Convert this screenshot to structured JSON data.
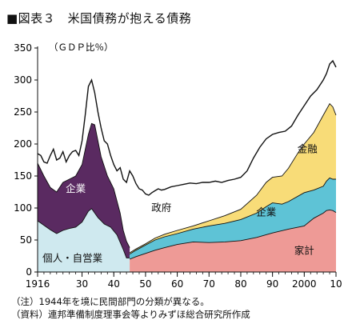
{
  "title": "■図表３　米国債務が抱える債務",
  "notes": [
    "（注）1944年を境に民間部門の分類が異なる。",
    "（資料）連邦準備制度理事会等よりみずほ総合研究所作成"
  ],
  "colors": {
    "household_pre": "#cfe9ef",
    "corporate_pre": "#5a2a61",
    "household": "#ee9a96",
    "corporate": "#5ec3d6",
    "finance": "#f8dc78",
    "government_line": "#111111"
  },
  "chart_data": {
    "type": "area",
    "title": "■図表３　米国債務が抱える債務",
    "ylabel": "（ＧＤＰ比％）",
    "xlabel": "",
    "xlim": [
      1916,
      2010
    ],
    "ylim": [
      0,
      350
    ],
    "yticks": [
      0,
      50,
      100,
      150,
      200,
      250,
      300,
      350
    ],
    "xticks": [
      {
        "value": 1916,
        "label": "1916"
      },
      {
        "value": 1930,
        "label": "30"
      },
      {
        "value": 1940,
        "label": "40"
      },
      {
        "value": 1950,
        "label": "50"
      },
      {
        "value": 1960,
        "label": "60"
      },
      {
        "value": 1970,
        "label": "70"
      },
      {
        "value": 1980,
        "label": "80"
      },
      {
        "value": 1990,
        "label": "90"
      },
      {
        "value": 2000,
        "label": "2000"
      },
      {
        "value": 2010,
        "label": "10"
      }
    ],
    "grid": false,
    "legend": "none",
    "series": [
      {
        "name": "個人・自営業",
        "key": "household_pre",
        "stacked_top": [
          [
            1916,
            80
          ],
          [
            1918,
            73
          ],
          [
            1920,
            66
          ],
          [
            1922,
            60
          ],
          [
            1924,
            65
          ],
          [
            1926,
            68
          ],
          [
            1928,
            70
          ],
          [
            1930,
            78
          ],
          [
            1932,
            95
          ],
          [
            1933,
            99
          ],
          [
            1935,
            85
          ],
          [
            1937,
            75
          ],
          [
            1939,
            70
          ],
          [
            1941,
            58
          ],
          [
            1943,
            35
          ],
          [
            1944,
            22
          ],
          [
            1945,
            22
          ]
        ]
      },
      {
        "name": "企業",
        "key": "corporate_pre",
        "stacked_top": [
          [
            1916,
            170
          ],
          [
            1918,
            150
          ],
          [
            1920,
            132
          ],
          [
            1922,
            125
          ],
          [
            1924,
            140
          ],
          [
            1926,
            145
          ],
          [
            1928,
            150
          ],
          [
            1930,
            168
          ],
          [
            1932,
            215
          ],
          [
            1933,
            232
          ],
          [
            1934,
            230
          ],
          [
            1936,
            180
          ],
          [
            1938,
            150
          ],
          [
            1940,
            130
          ],
          [
            1942,
            92
          ],
          [
            1943,
            65
          ],
          [
            1944,
            48
          ],
          [
            1945,
            38
          ]
        ]
      },
      {
        "name": "家計",
        "key": "household",
        "stacked_top": [
          [
            1945,
            20
          ],
          [
            1947,
            24
          ],
          [
            1950,
            29
          ],
          [
            1953,
            34
          ],
          [
            1956,
            38
          ],
          [
            1960,
            43
          ],
          [
            1965,
            47
          ],
          [
            1970,
            46
          ],
          [
            1975,
            47
          ],
          [
            1980,
            49
          ],
          [
            1985,
            54
          ],
          [
            1990,
            61
          ],
          [
            1995,
            67
          ],
          [
            2000,
            72
          ],
          [
            2003,
            84
          ],
          [
            2006,
            92
          ],
          [
            2007,
            96
          ],
          [
            2008,
            97
          ],
          [
            2009,
            96
          ],
          [
            2010,
            93
          ]
        ]
      },
      {
        "name": "企業",
        "key": "corporate",
        "stacked_top": [
          [
            1945,
            28
          ],
          [
            1947,
            34
          ],
          [
            1950,
            42
          ],
          [
            1953,
            50
          ],
          [
            1956,
            55
          ],
          [
            1960,
            60
          ],
          [
            1965,
            67
          ],
          [
            1970,
            72
          ],
          [
            1975,
            76
          ],
          [
            1980,
            82
          ],
          [
            1985,
            92
          ],
          [
            1988,
            102
          ],
          [
            1990,
            108
          ],
          [
            1993,
            106
          ],
          [
            1995,
            110
          ],
          [
            2000,
            124
          ],
          [
            2003,
            128
          ],
          [
            2006,
            134
          ],
          [
            2007,
            142
          ],
          [
            2008,
            147
          ],
          [
            2009,
            145
          ],
          [
            2010,
            145
          ]
        ]
      },
      {
        "name": "金融",
        "key": "finance",
        "stacked_top": [
          [
            1945,
            30
          ],
          [
            1947,
            36
          ],
          [
            1950,
            44
          ],
          [
            1953,
            53
          ],
          [
            1956,
            59
          ],
          [
            1960,
            65
          ],
          [
            1965,
            72
          ],
          [
            1970,
            80
          ],
          [
            1975,
            88
          ],
          [
            1980,
            98
          ],
          [
            1985,
            120
          ],
          [
            1988,
            140
          ],
          [
            1990,
            148
          ],
          [
            1993,
            150
          ],
          [
            1995,
            162
          ],
          [
            1998,
            186
          ],
          [
            2000,
            200
          ],
          [
            2003,
            218
          ],
          [
            2006,
            245
          ],
          [
            2008,
            263
          ],
          [
            2009,
            258
          ],
          [
            2010,
            245
          ]
        ]
      },
      {
        "name": "政府",
        "key": "government_line",
        "stacked_top": [
          [
            1916,
            185
          ],
          [
            1917,
            182
          ],
          [
            1918,
            172
          ],
          [
            1919,
            170
          ],
          [
            1920,
            182
          ],
          [
            1921,
            192
          ],
          [
            1922,
            175
          ],
          [
            1923,
            178
          ],
          [
            1924,
            188
          ],
          [
            1925,
            172
          ],
          [
            1926,
            182
          ],
          [
            1927,
            188
          ],
          [
            1928,
            190
          ],
          [
            1929,
            182
          ],
          [
            1930,
            205
          ],
          [
            1931,
            245
          ],
          [
            1932,
            290
          ],
          [
            1933,
            300
          ],
          [
            1934,
            280
          ],
          [
            1935,
            250
          ],
          [
            1936,
            225
          ],
          [
            1937,
            205
          ],
          [
            1938,
            200
          ],
          [
            1939,
            182
          ],
          [
            1940,
            168
          ],
          [
            1941,
            158
          ],
          [
            1942,
            163
          ],
          [
            1943,
            145
          ],
          [
            1944,
            140
          ],
          [
            1945,
            158
          ],
          [
            1946,
            150
          ],
          [
            1947,
            138
          ],
          [
            1948,
            130
          ],
          [
            1949,
            128
          ],
          [
            1950,
            122
          ],
          [
            1951,
            120
          ],
          [
            1952,
            124
          ],
          [
            1953,
            127
          ],
          [
            1954,
            130
          ],
          [
            1955,
            128
          ],
          [
            1956,
            129
          ],
          [
            1958,
            133
          ],
          [
            1960,
            135
          ],
          [
            1962,
            137
          ],
          [
            1964,
            139
          ],
          [
            1966,
            138
          ],
          [
            1968,
            140
          ],
          [
            1970,
            140
          ],
          [
            1972,
            142
          ],
          [
            1974,
            140
          ],
          [
            1976,
            143
          ],
          [
            1978,
            145
          ],
          [
            1980,
            148
          ],
          [
            1982,
            158
          ],
          [
            1984,
            178
          ],
          [
            1986,
            195
          ],
          [
            1988,
            208
          ],
          [
            1990,
            215
          ],
          [
            1992,
            218
          ],
          [
            1994,
            220
          ],
          [
            1996,
            228
          ],
          [
            1998,
            245
          ],
          [
            2000,
            260
          ],
          [
            2002,
            275
          ],
          [
            2004,
            285
          ],
          [
            2006,
            300
          ],
          [
            2007,
            310
          ],
          [
            2008,
            325
          ],
          [
            2009,
            330
          ],
          [
            2010,
            320
          ]
        ]
      }
    ],
    "area_labels": [
      {
        "text": "個人・自営業",
        "x": 1927,
        "y": 16
      },
      {
        "text": "企業",
        "x": 1928,
        "y": 125
      },
      {
        "text": "政府",
        "x": 1955,
        "y": 95
      },
      {
        "text": "金融",
        "x": 2001,
        "y": 187
      },
      {
        "text": "企業",
        "x": 1988,
        "y": 88
      },
      {
        "text": "家計",
        "x": 2000,
        "y": 28
      }
    ]
  }
}
